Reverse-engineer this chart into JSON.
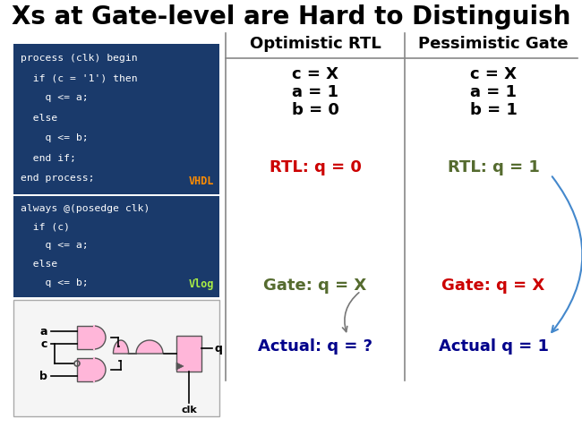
{
  "title": "Xs at Gate-level are Hard to Distinguish",
  "title_fontsize": 20,
  "title_fontweight": "bold",
  "bg_color": "#ffffff",
  "code_bg": "#1a3a6b",
  "code_text_color": "#ffffff",
  "code_label_vhdl_color": "#ff8c00",
  "code_label_vlog_color": "#aaee44",
  "vhdl_code": [
    "process (clk) begin",
    "  if (c = '1') then",
    "    q <= a;",
    "  else",
    "    q <= b;",
    "  end if;",
    "end process;"
  ],
  "vlog_code": [
    "always @(posedge clk)",
    "  if (c)",
    "    q <= a;",
    "  else",
    "    q <= b;"
  ],
  "col_header_color": "#000000",
  "col_header_fontsize": 13,
  "col_data_fontsize": 13,
  "opt_rtl_header": "Optimistic RTL",
  "pess_gate_header": "Pessimistic Gate",
  "shared_data": [
    "c = X",
    "a = 1",
    "b = 0"
  ],
  "pess_data": [
    "c = X",
    "a = 1",
    "b = 1"
  ],
  "rtl_opt_result": "RTL: q = 0",
  "rtl_opt_color": "#cc0000",
  "rtl_pess_result": "RTL: q = 1",
  "rtl_pess_color": "#556b2f",
  "gate_opt_result": "Gate: q = X",
  "gate_opt_color": "#556b2f",
  "gate_pess_result": "Gate: q = X",
  "gate_pess_color": "#cc0000",
  "actual_opt_result": "Actual: q = ?",
  "actual_opt_color": "#00008b",
  "actual_pess_result": "Actual q = 1",
  "actual_pess_color": "#00008b",
  "pink_color": "#ffb6d9",
  "divider_color": "#888888",
  "arrow_blue": "#4488cc",
  "arrow_gray": "#777777"
}
